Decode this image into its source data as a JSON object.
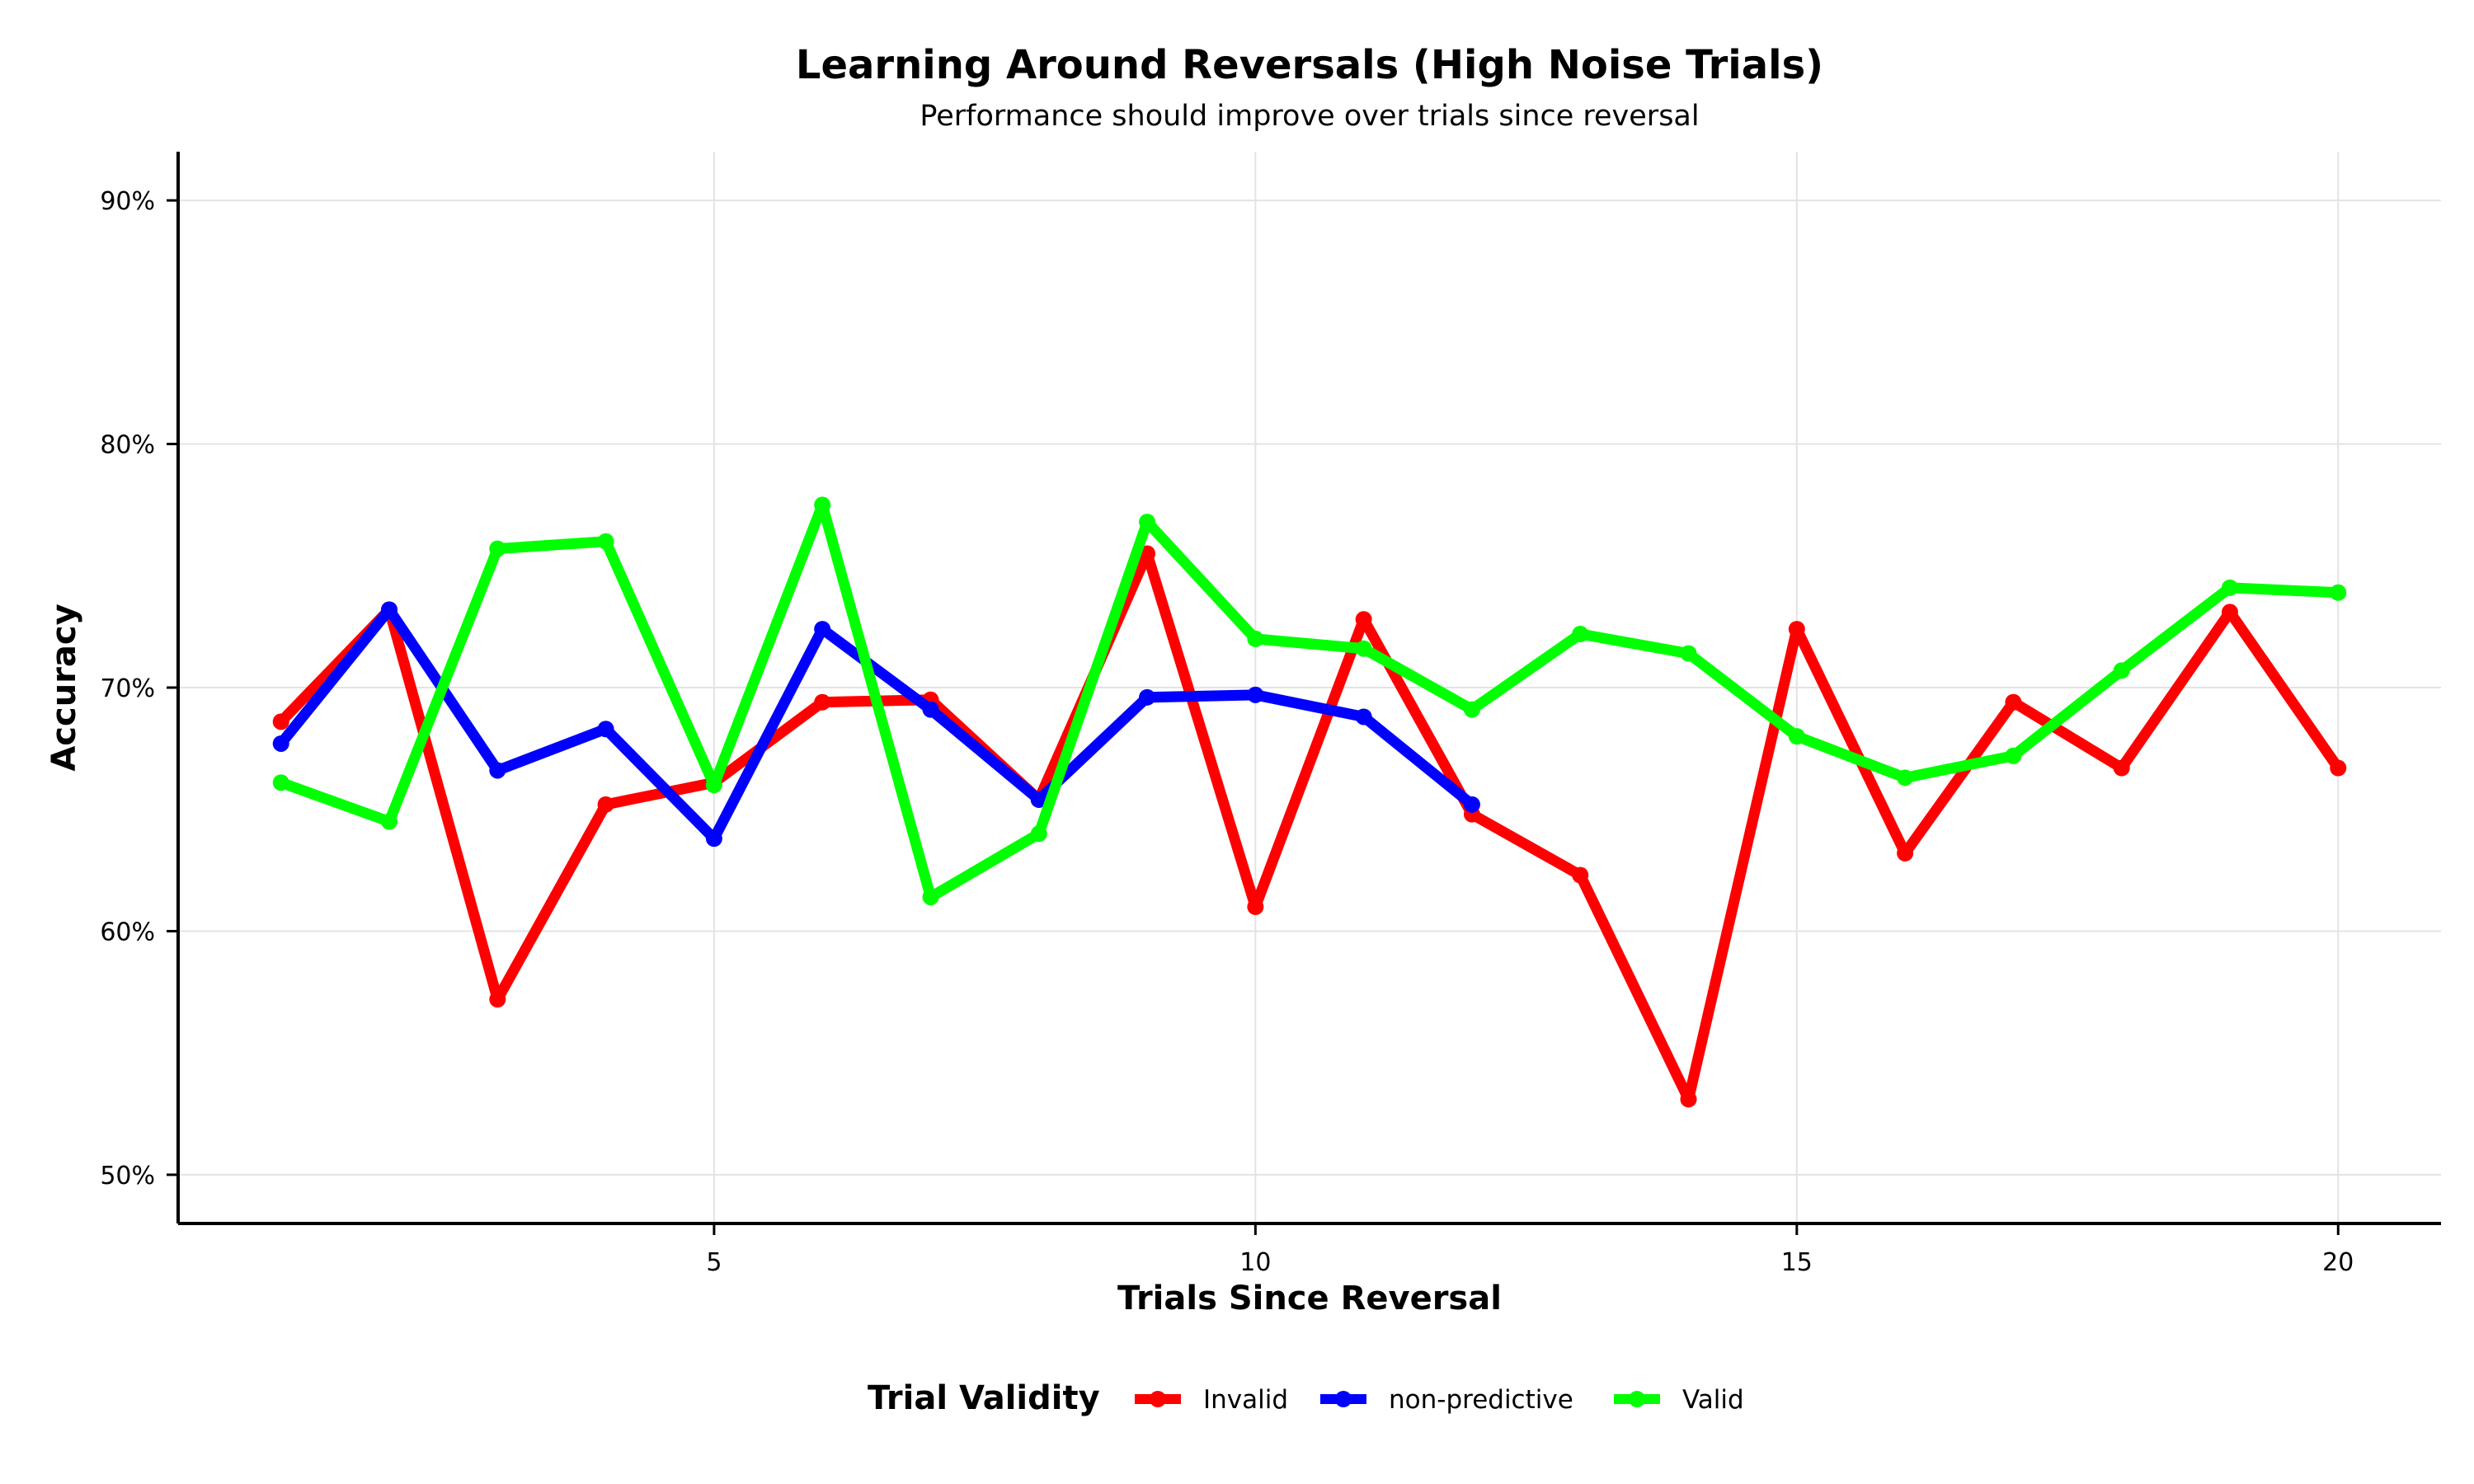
{
  "chart_data": {
    "type": "line",
    "title": "Learning Around Reversals (High Noise Trials)",
    "subtitle": "Performance should improve over trials since reversal",
    "xlabel": "Trials Since Reversal",
    "ylabel": "Accuracy",
    "xlim": [
      0.05,
      20.95
    ],
    "ylim": [
      0.48,
      0.92
    ],
    "x_ticks": [
      5,
      10,
      15,
      20
    ],
    "x_tick_labels": [
      "5",
      "10",
      "15",
      "20"
    ],
    "y_ticks": [
      0.5,
      0.6,
      0.7,
      0.8,
      0.9
    ],
    "y_tick_labels": [
      "50%",
      "60%",
      "70%",
      "80%",
      "90%"
    ],
    "grid": true,
    "legend": {
      "title": "Trial Validity",
      "placement": "bottom"
    },
    "series": [
      {
        "name": "Invalid",
        "color": "#ff0000",
        "x": [
          1,
          2,
          3,
          4,
          5,
          6,
          7,
          8,
          9,
          10,
          11,
          12,
          13,
          14,
          15,
          16,
          17,
          18,
          19,
          20
        ],
        "y": [
          0.686,
          0.732,
          0.572,
          0.652,
          0.661,
          0.694,
          0.695,
          0.654,
          0.755,
          0.61,
          0.728,
          0.648,
          0.623,
          0.531,
          0.724,
          0.632,
          0.694,
          0.667,
          0.731,
          0.667
        ]
      },
      {
        "name": "non-predictive",
        "color": "#0000ff",
        "x": [
          1,
          2,
          3,
          4,
          5,
          6,
          7,
          8,
          9,
          10,
          11,
          12
        ],
        "y": [
          0.677,
          0.732,
          0.666,
          0.683,
          0.638,
          0.724,
          0.691,
          0.654,
          0.696,
          0.697,
          0.688,
          0.652
        ]
      },
      {
        "name": "Valid",
        "color": "#00ff00",
        "x": [
          1,
          2,
          3,
          4,
          5,
          6,
          7,
          8,
          9,
          10,
          11,
          12,
          13,
          14,
          15,
          16,
          17,
          18,
          19,
          20
        ],
        "y": [
          0.661,
          0.645,
          0.757,
          0.76,
          0.66,
          0.775,
          0.614,
          0.64,
          0.768,
          0.72,
          0.716,
          0.691,
          0.722,
          0.714,
          0.68,
          0.663,
          0.672,
          0.707,
          0.741,
          0.739
        ]
      }
    ]
  }
}
